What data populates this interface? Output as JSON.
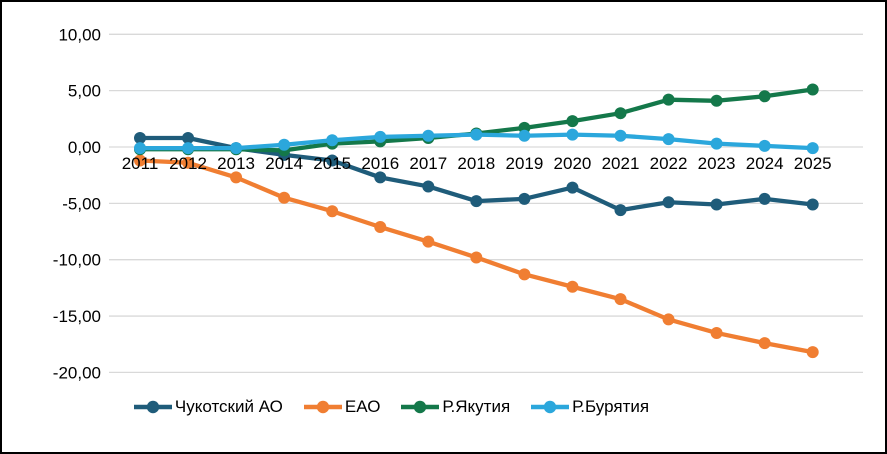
{
  "chart_data": {
    "type": "line",
    "title": "",
    "x_categories": [
      "2011",
      "2012",
      "2013",
      "2014",
      "2015",
      "2016",
      "2017",
      "2018",
      "2019",
      "2020",
      "2021",
      "2022",
      "2023",
      "2024",
      "2025"
    ],
    "y_axis": {
      "min": -20,
      "max": 10,
      "ticks": [
        {
          "value": 10,
          "label": "10,00"
        },
        {
          "value": 5,
          "label": "5,00"
        },
        {
          "value": 0,
          "label": "0,00"
        },
        {
          "value": -5,
          "label": "-5,00"
        },
        {
          "value": -10,
          "label": "-10,00"
        },
        {
          "value": -15,
          "label": "-15,00"
        },
        {
          "value": -20,
          "label": "-20,00"
        }
      ]
    },
    "grid": true,
    "legend_position": "bottom",
    "colors": {
      "grid": "#D9D9D9",
      "text": "#000000",
      "background": "#FFFFFF",
      "border": "#000000"
    },
    "series": [
      {
        "name": "Чукотский АО",
        "color": "#1F5C7A",
        "values": [
          0.8,
          0.8,
          -0.1,
          -0.7,
          -1.2,
          -2.7,
          -3.5,
          -4.8,
          -4.6,
          -3.6,
          -5.6,
          -4.9,
          -5.1,
          -4.6,
          -5.1
        ]
      },
      {
        "name": "ЕАО",
        "color": "#F07E32",
        "values": [
          -1.2,
          -1.4,
          -2.7,
          -4.5,
          -5.7,
          -7.1,
          -8.4,
          -9.8,
          -11.3,
          -12.4,
          -13.5,
          -15.3,
          -16.5,
          -17.4,
          -18.2
        ]
      },
      {
        "name": "Р.Якутия",
        "color": "#14784A",
        "values": [
          -0.2,
          -0.2,
          -0.2,
          -0.3,
          0.3,
          0.5,
          0.8,
          1.2,
          1.7,
          2.3,
          3.0,
          4.2,
          4.1,
          4.5,
          5.1
        ]
      },
      {
        "name": "Р.Бурятия",
        "color": "#2BA7DC",
        "values": [
          -0.1,
          -0.1,
          -0.1,
          0.2,
          0.6,
          0.9,
          1.0,
          1.1,
          1.0,
          1.1,
          1.0,
          0.7,
          0.3,
          0.1,
          -0.1
        ]
      }
    ]
  }
}
